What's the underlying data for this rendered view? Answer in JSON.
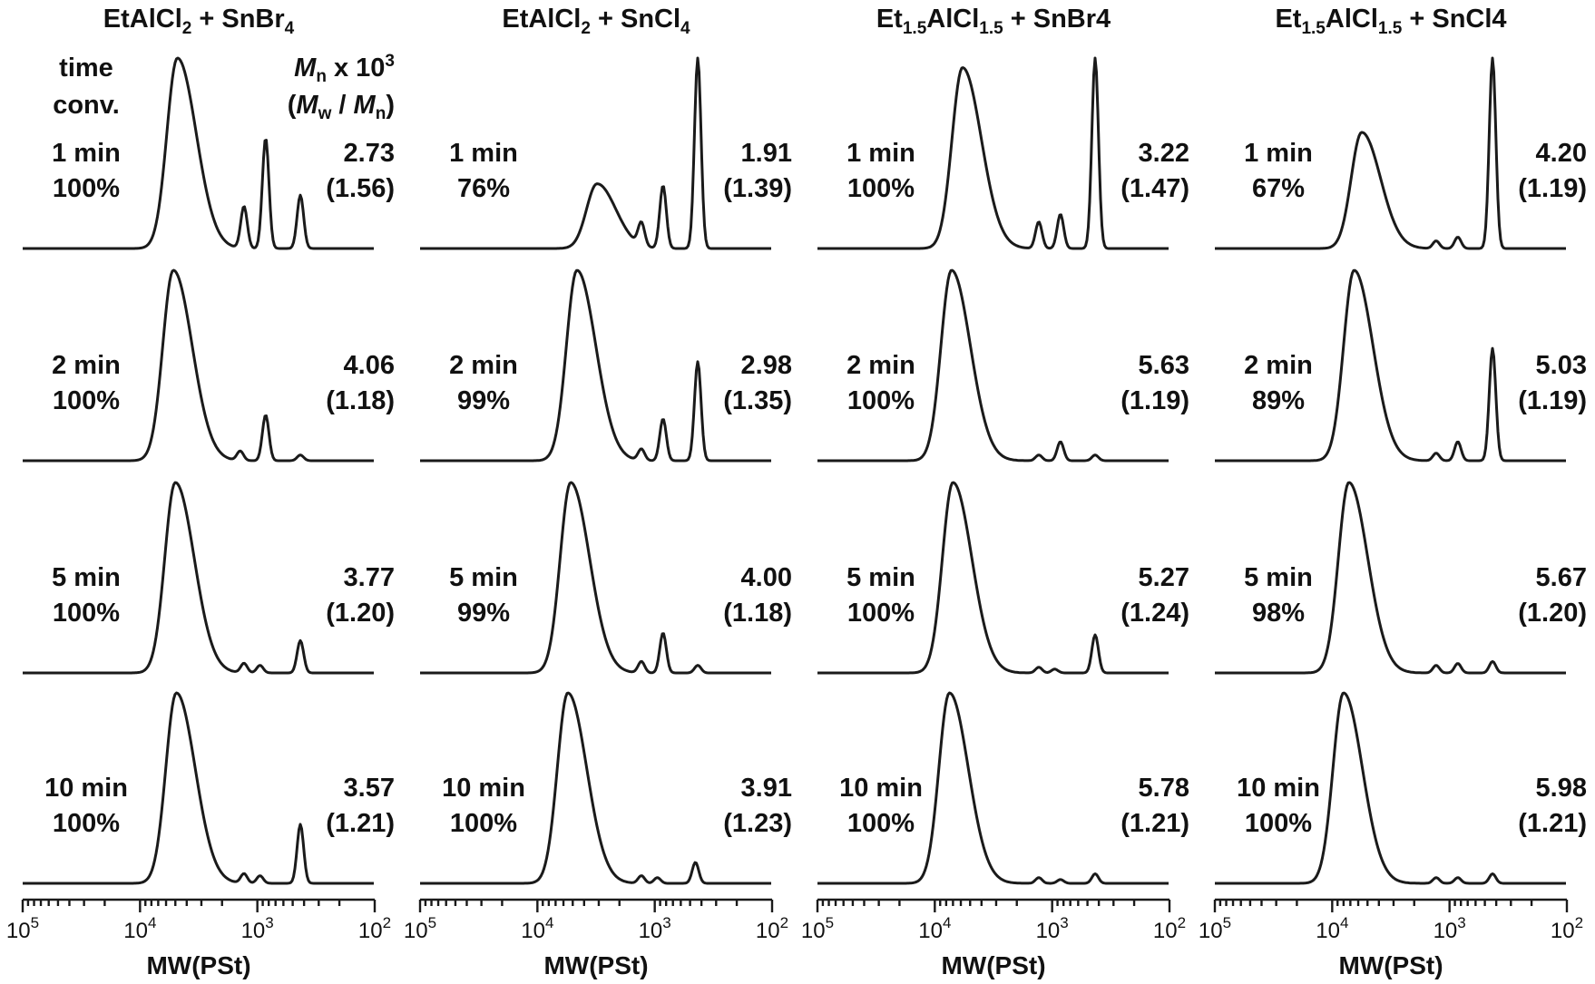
{
  "figure": {
    "header": {
      "time": "time",
      "conv": "conv.",
      "mn_prefix": "M",
      "mn_sub": "n",
      "mn_suffix": " x 10",
      "mn_exp": "3",
      "ratio_open": "(",
      "mw": "M",
      "mw_sub": "w",
      "ratio_mid": " / ",
      "ratio_mn": "M",
      "ratio_mn_sub": "n",
      "ratio_close": ")"
    }
  },
  "chart_data": [
    {
      "type": "line",
      "title": {
        "pre": "EtAlCl",
        "sub": "2",
        "mid": " + SnBr",
        "sub2": "4",
        "post": ""
      },
      "xlabel": "MW(PSt)",
      "xscale": "log",
      "xlim": [
        100000,
        100
      ],
      "x_ticks": [
        {
          "base": "10",
          "exp": "5"
        },
        {
          "base": "10",
          "exp": "4"
        },
        {
          "base": "10",
          "exp": "3"
        },
        {
          "base": "10",
          "exp": "2"
        }
      ],
      "series": [
        {
          "time": "1 min",
          "conversion": "100%",
          "mn": "2.73",
          "dispersity": "(1.56)",
          "peaks": [
            {
              "mw": 4800,
              "h": 1.0
            },
            {
              "mw": 1300,
              "h": 0.22
            },
            {
              "mw": 850,
              "h": 0.58
            },
            {
              "mw": 430,
              "h": 0.28
            }
          ]
        },
        {
          "time": "2 min",
          "conversion": "100%",
          "mn": "4.06",
          "dispersity": "(1.18)",
          "peaks": [
            {
              "mw": 5200,
              "h": 1.0
            },
            {
              "mw": 1400,
              "h": 0.05
            },
            {
              "mw": 850,
              "h": 0.24
            },
            {
              "mw": 430,
              "h": 0.03
            }
          ]
        },
        {
          "time": "5 min",
          "conversion": "100%",
          "mn": "3.77",
          "dispersity": "(1.20)",
          "peaks": [
            {
              "mw": 5000,
              "h": 1.0
            },
            {
              "mw": 1300,
              "h": 0.05
            },
            {
              "mw": 950,
              "h": 0.04
            },
            {
              "mw": 430,
              "h": 0.17
            }
          ]
        },
        {
          "time": "10 min",
          "conversion": "100%",
          "mn": "3.57",
          "dispersity": "(1.21)",
          "peaks": [
            {
              "mw": 4900,
              "h": 1.0
            },
            {
              "mw": 1300,
              "h": 0.05
            },
            {
              "mw": 950,
              "h": 0.04
            },
            {
              "mw": 430,
              "h": 0.31
            }
          ]
        }
      ]
    },
    {
      "type": "line",
      "title": {
        "pre": "EtAlCl",
        "sub": "2",
        "mid": " + SnCl",
        "sub2": "4",
        "post": ""
      },
      "xlabel": "MW(PSt)",
      "xscale": "log",
      "xlim": [
        100000,
        100
      ],
      "x_ticks": [
        {
          "base": "10",
          "exp": "5"
        },
        {
          "base": "10",
          "exp": "4"
        },
        {
          "base": "10",
          "exp": "3"
        },
        {
          "base": "10",
          "exp": "2"
        }
      ],
      "series": [
        {
          "time": "1 min",
          "conversion": "76%",
          "mn": "1.91",
          "dispersity": "(1.39)",
          "peaks": [
            {
              "mw": 3100,
              "h": 0.34
            },
            {
              "mw": 1300,
              "h": 0.12
            },
            {
              "mw": 850,
              "h": 0.33
            },
            {
              "mw": 430,
              "h": 1.0
            }
          ]
        },
        {
          "time": "2 min",
          "conversion": "99%",
          "mn": "2.98",
          "dispersity": "(1.35)",
          "peaks": [
            {
              "mw": 4600,
              "h": 1.0
            },
            {
              "mw": 1300,
              "h": 0.06
            },
            {
              "mw": 850,
              "h": 0.22
            },
            {
              "mw": 430,
              "h": 0.52
            }
          ]
        },
        {
          "time": "5 min",
          "conversion": "99%",
          "mn": "4.00",
          "dispersity": "(1.18)",
          "peaks": [
            {
              "mw": 5200,
              "h": 1.0
            },
            {
              "mw": 1300,
              "h": 0.06
            },
            {
              "mw": 850,
              "h": 0.21
            },
            {
              "mw": 430,
              "h": 0.04
            }
          ]
        },
        {
          "time": "10 min",
          "conversion": "100%",
          "mn": "3.91",
          "dispersity": "(1.23)",
          "peaks": [
            {
              "mw": 5500,
              "h": 1.0
            },
            {
              "mw": 1300,
              "h": 0.04
            },
            {
              "mw": 950,
              "h": 0.03
            },
            {
              "mw": 450,
              "h": 0.11
            }
          ]
        }
      ]
    },
    {
      "type": "line",
      "title": {
        "pre": "Et",
        "sub": "1.5",
        "mid": "AlCl",
        "sub2": "1.5",
        "post": " + SnBr4"
      },
      "xlabel": "MW(PSt)",
      "xscale": "log",
      "xlim": [
        100000,
        100
      ],
      "x_ticks": [
        {
          "base": "10",
          "exp": "5"
        },
        {
          "base": "10",
          "exp": "4"
        },
        {
          "base": "10",
          "exp": "3"
        },
        {
          "base": "10",
          "exp": "2"
        }
      ],
      "series": [
        {
          "time": "1 min",
          "conversion": "100%",
          "mn": "3.22",
          "dispersity": "(1.47)",
          "peaks": [
            {
              "mw": 5800,
              "h": 0.95
            },
            {
              "mw": 1300,
              "h": 0.14
            },
            {
              "mw": 850,
              "h": 0.18
            },
            {
              "mw": 430,
              "h": 1.0
            }
          ]
        },
        {
          "time": "2 min",
          "conversion": "100%",
          "mn": "5.63",
          "dispersity": "(1.19)",
          "peaks": [
            {
              "mw": 7200,
              "h": 1.0
            },
            {
              "mw": 1300,
              "h": 0.03
            },
            {
              "mw": 850,
              "h": 0.1
            },
            {
              "mw": 430,
              "h": 0.03
            }
          ]
        },
        {
          "time": "5 min",
          "conversion": "100%",
          "mn": "5.27",
          "dispersity": "(1.24)",
          "peaks": [
            {
              "mw": 7000,
              "h": 1.0
            },
            {
              "mw": 1300,
              "h": 0.03
            },
            {
              "mw": 950,
              "h": 0.02
            },
            {
              "mw": 430,
              "h": 0.2
            }
          ]
        },
        {
          "time": "10 min",
          "conversion": "100%",
          "mn": "5.78",
          "dispersity": "(1.21)",
          "peaks": [
            {
              "mw": 7500,
              "h": 1.0
            },
            {
              "mw": 1300,
              "h": 0.03
            },
            {
              "mw": 850,
              "h": 0.02
            },
            {
              "mw": 430,
              "h": 0.05
            }
          ]
        }
      ]
    },
    {
      "type": "line",
      "title": {
        "pre": "Et",
        "sub": "1.5",
        "mid": "AlCl",
        "sub2": "1.5",
        "post": " + SnCl4"
      },
      "xlabel": "MW(PSt)",
      "xscale": "log",
      "xlim": [
        100000,
        100
      ],
      "x_ticks": [
        {
          "base": "10",
          "exp": "5"
        },
        {
          "base": "10",
          "exp": "4"
        },
        {
          "base": "10",
          "exp": "3"
        },
        {
          "base": "10",
          "exp": "2"
        }
      ],
      "series": [
        {
          "time": "1 min",
          "conversion": "67%",
          "mn": "4.20",
          "dispersity": "(1.19)",
          "peaks": [
            {
              "mw": 5600,
              "h": 0.61
            },
            {
              "mw": 1300,
              "h": 0.04
            },
            {
              "mw": 850,
              "h": 0.06
            },
            {
              "mw": 430,
              "h": 1.0
            }
          ]
        },
        {
          "time": "2 min",
          "conversion": "89%",
          "mn": "5.03",
          "dispersity": "(1.19)",
          "peaks": [
            {
              "mw": 6500,
              "h": 1.0
            },
            {
              "mw": 1300,
              "h": 0.04
            },
            {
              "mw": 850,
              "h": 0.1
            },
            {
              "mw": 430,
              "h": 0.59
            }
          ]
        },
        {
          "time": "5 min",
          "conversion": "98%",
          "mn": "5.67",
          "dispersity": "(1.20)",
          "peaks": [
            {
              "mw": 7200,
              "h": 1.0
            },
            {
              "mw": 1300,
              "h": 0.04
            },
            {
              "mw": 850,
              "h": 0.05
            },
            {
              "mw": 430,
              "h": 0.06
            }
          ]
        },
        {
          "time": "10 min",
          "conversion": "100%",
          "mn": "5.98",
          "dispersity": "(1.21)",
          "peaks": [
            {
              "mw": 8000,
              "h": 1.0
            },
            {
              "mw": 1300,
              "h": 0.03
            },
            {
              "mw": 850,
              "h": 0.03
            },
            {
              "mw": 430,
              "h": 0.05
            }
          ]
        }
      ]
    }
  ]
}
